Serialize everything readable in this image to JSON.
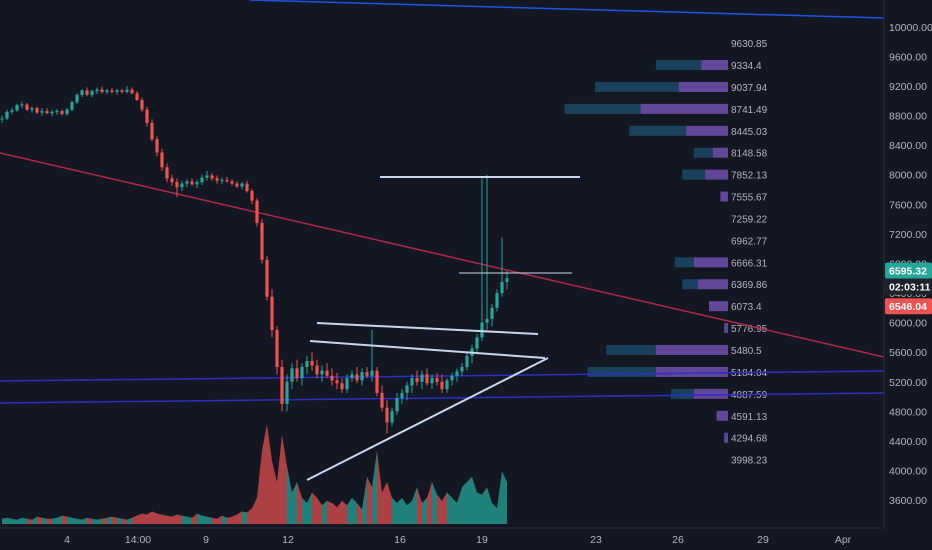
{
  "chart_data": {
    "type": "candlestick",
    "title": "",
    "y_axis": {
      "ylim": [
        3450,
        10250
      ],
      "ticks": [
        "10000.00",
        "9600.00",
        "9200.00",
        "8800.00",
        "8400.00",
        "8000.00",
        "7600.00",
        "7200.00",
        "6800.00",
        "6400.00",
        "6000.00",
        "5600.00",
        "5200.00",
        "4800.00",
        "4400.00",
        "4000.00",
        "3600.00"
      ],
      "position": "right"
    },
    "x_axis": {
      "ticks": [
        "4",
        "14:00",
        "9",
        "12",
        "16",
        "19",
        "23",
        "26",
        "29",
        "Apr"
      ]
    },
    "price_tags": [
      {
        "label": "6595.32",
        "value": 6595.32,
        "color": "#26a69a"
      },
      {
        "label": "02:03:11",
        "color": "#1e222d"
      },
      {
        "label": "6546.04",
        "value": 6546.04,
        "color": "#ef5350"
      }
    ],
    "volume_profile": {
      "levels": [
        "9630.85",
        "9334.4",
        "9037.94",
        "8741.49",
        "8445.03",
        "8148.58",
        "7852.13",
        "7555.67",
        "7259.22",
        "6962.77",
        "6666.31",
        "6369.86",
        "6073.4",
        "5776.95",
        "5480.5",
        "5184.04",
        "4887.59",
        "4591.13",
        "4294.68",
        "3998.23"
      ],
      "buy_volume": [
        0,
        1.2,
        2.2,
        2.0,
        1.5,
        0.5,
        0.6,
        0,
        0,
        0,
        0.5,
        0.4,
        0,
        0,
        1.3,
        1.8,
        0.6,
        0,
        0,
        0
      ],
      "sell_volume": [
        0,
        0.7,
        1.3,
        2.3,
        1.1,
        0.4,
        0.6,
        0.2,
        0,
        0,
        0.9,
        0.8,
        0.5,
        0.1,
        1.9,
        1.9,
        0.9,
        0.3,
        0.1,
        0
      ]
    },
    "candles": [
      [
        8750,
        8800,
        8700,
        8760
      ],
      [
        8760,
        8880,
        8740,
        8850
      ],
      [
        8850,
        8900,
        8820,
        8870
      ],
      [
        8870,
        8960,
        8850,
        8940
      ],
      [
        8940,
        8990,
        8900,
        8950
      ],
      [
        8950,
        8970,
        8860,
        8880
      ],
      [
        8880,
        8920,
        8840,
        8900
      ],
      [
        8900,
        8920,
        8820,
        8840
      ],
      [
        8840,
        8900,
        8800,
        8860
      ],
      [
        8860,
        8900,
        8820,
        8830
      ],
      [
        8830,
        8880,
        8790,
        8850
      ],
      [
        8850,
        8890,
        8810,
        8860
      ],
      [
        8860,
        8880,
        8800,
        8820
      ],
      [
        8820,
        8900,
        8800,
        8880
      ],
      [
        8880,
        9000,
        8860,
        8980
      ],
      [
        8980,
        9100,
        8960,
        9080
      ],
      [
        9080,
        9160,
        9050,
        9140
      ],
      [
        9140,
        9180,
        9060,
        9080
      ],
      [
        9080,
        9150,
        9050,
        9130
      ],
      [
        9130,
        9180,
        9090,
        9150
      ],
      [
        9150,
        9190,
        9100,
        9120
      ],
      [
        9120,
        9160,
        9090,
        9140
      ],
      [
        9140,
        9170,
        9100,
        9120
      ],
      [
        9120,
        9160,
        9080,
        9140
      ],
      [
        9140,
        9160,
        9100,
        9120
      ],
      [
        9120,
        9200,
        9100,
        9150
      ],
      [
        9150,
        9180,
        9090,
        9100
      ],
      [
        9100,
        9130,
        9000,
        9010
      ],
      [
        9010,
        9040,
        8850,
        8880
      ],
      [
        8880,
        8920,
        8650,
        8700
      ],
      [
        8700,
        8750,
        8450,
        8480
      ],
      [
        8480,
        8520,
        8250,
        8300
      ],
      [
        8300,
        8350,
        8050,
        8100
      ],
      [
        8100,
        8150,
        7900,
        7950
      ],
      [
        7950,
        8000,
        7850,
        7900
      ],
      [
        7900,
        7950,
        7700,
        7830
      ],
      [
        7830,
        7920,
        7780,
        7880
      ],
      [
        7880,
        7940,
        7830,
        7910
      ],
      [
        7910,
        7950,
        7850,
        7870
      ],
      [
        7870,
        7930,
        7820,
        7900
      ],
      [
        7900,
        8000,
        7860,
        7960
      ],
      [
        7960,
        8050,
        7920,
        7990
      ],
      [
        7990,
        8020,
        7920,
        7950
      ],
      [
        7950,
        7990,
        7880,
        7920
      ],
      [
        7920,
        7960,
        7870,
        7930
      ],
      [
        7930,
        7970,
        7890,
        7910
      ],
      [
        7910,
        7940,
        7850,
        7880
      ],
      [
        7880,
        7910,
        7820,
        7840
      ],
      [
        7840,
        7900,
        7800,
        7880
      ],
      [
        7880,
        7920,
        7760,
        7780
      ],
      [
        7780,
        7810,
        7600,
        7650
      ],
      [
        7650,
        7680,
        7300,
        7350
      ],
      [
        7350,
        7400,
        6800,
        6850
      ],
      [
        6850,
        6900,
        6300,
        6350
      ],
      [
        6350,
        6450,
        5800,
        5900
      ],
      [
        5900,
        5950,
        5300,
        5400
      ],
      [
        5400,
        5500,
        4800,
        4900
      ],
      [
        4900,
        5300,
        4800,
        5200
      ],
      [
        5200,
        5450,
        5100,
        5380
      ],
      [
        5380,
        5500,
        5200,
        5250
      ],
      [
        5250,
        5450,
        5150,
        5400
      ],
      [
        5400,
        5550,
        5300,
        5480
      ],
      [
        5480,
        5600,
        5350,
        5420
      ],
      [
        5420,
        5500,
        5250,
        5300
      ],
      [
        5300,
        5420,
        5200,
        5350
      ],
      [
        5350,
        5450,
        5250,
        5280
      ],
      [
        5280,
        5380,
        5150,
        5220
      ],
      [
        5220,
        5320,
        5100,
        5180
      ],
      [
        5180,
        5250,
        5050,
        5100
      ],
      [
        5100,
        5300,
        5050,
        5250
      ],
      [
        5250,
        5350,
        5200,
        5300
      ],
      [
        5300,
        5400,
        5180,
        5220
      ],
      [
        5220,
        5380,
        5150,
        5330
      ],
      [
        5330,
        5400,
        5250,
        5280
      ],
      [
        5280,
        5900,
        5200,
        5350
      ],
      [
        5350,
        5400,
        5000,
        5050
      ],
      [
        5050,
        5150,
        4800,
        4850
      ],
      [
        4850,
        4950,
        4500,
        4650
      ],
      [
        4650,
        4850,
        4600,
        4800
      ],
      [
        4800,
        5050,
        4750,
        4980
      ],
      [
        4980,
        5100,
        4900,
        5050
      ],
      [
        5050,
        5200,
        4950,
        5150
      ],
      [
        5150,
        5300,
        5050,
        5250
      ],
      [
        5250,
        5350,
        5150,
        5200
      ],
      [
        5200,
        5350,
        5100,
        5300
      ],
      [
        5300,
        5380,
        5150,
        5180
      ],
      [
        5180,
        5300,
        5100,
        5250
      ],
      [
        5250,
        5320,
        5150,
        5200
      ],
      [
        5200,
        5300,
        5050,
        5100
      ],
      [
        5100,
        5250,
        5050,
        5220
      ],
      [
        5220,
        5320,
        5150,
        5280
      ],
      [
        5280,
        5380,
        5200,
        5340
      ],
      [
        5340,
        5450,
        5280,
        5400
      ],
      [
        5400,
        5600,
        5350,
        5550
      ],
      [
        5550,
        5700,
        5450,
        5650
      ],
      [
        5650,
        5850,
        5600,
        5800
      ],
      [
        5800,
        7950,
        5750,
        6000
      ],
      [
        6000,
        8000,
        5900,
        6050
      ],
      [
        6050,
        6250,
        5950,
        6200
      ],
      [
        6200,
        6450,
        6150,
        6400
      ],
      [
        6400,
        7150,
        6350,
        6550
      ],
      [
        6550,
        6700,
        6450,
        6600
      ]
    ],
    "volumes": [
      5,
      6,
      5,
      4,
      6,
      5,
      4,
      7,
      6,
      5,
      5,
      6,
      8,
      7,
      6,
      5,
      4,
      6,
      5,
      4,
      5,
      6,
      7,
      6,
      5,
      4,
      6,
      8,
      10,
      9,
      12,
      10,
      9,
      8,
      7,
      9,
      8,
      7,
      6,
      10,
      8,
      7,
      6,
      5,
      8,
      6,
      7,
      9,
      12,
      11,
      15,
      25,
      70,
      95,
      60,
      40,
      85,
      55,
      30,
      40,
      25,
      20,
      30,
      25,
      18,
      22,
      20,
      16,
      22,
      18,
      25,
      20,
      14,
      45,
      35,
      70,
      30,
      40,
      25,
      20,
      25,
      18,
      22,
      35,
      20,
      25,
      40,
      28,
      22,
      30,
      25,
      20,
      35,
      40,
      45,
      30,
      28,
      35,
      20,
      15,
      50,
      40
    ]
  }
}
